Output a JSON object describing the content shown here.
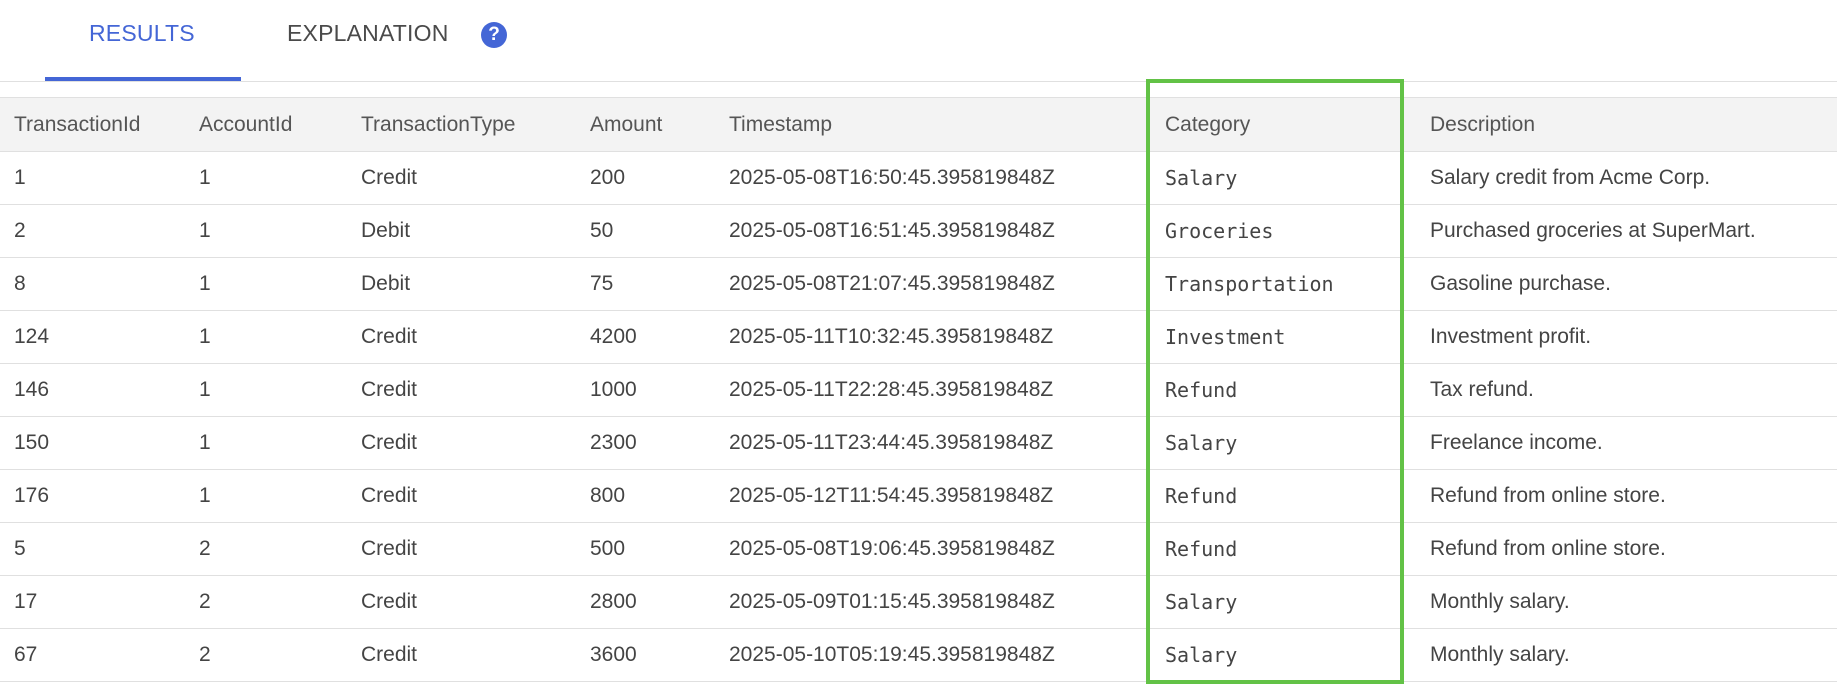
{
  "tabs": [
    {
      "label": "RESULTS",
      "active": true
    },
    {
      "label": "EXPLANATION",
      "active": false
    }
  ],
  "help_icon": "question-circle-icon",
  "accent_color": "#4466d6",
  "highlight_color": "#62c246",
  "table": {
    "columns": [
      "TransactionId",
      "AccountId",
      "TransactionType",
      "Amount",
      "Timestamp",
      "Category",
      "Description"
    ],
    "rows": [
      [
        "1",
        "1",
        "Credit",
        "200",
        "2025-05-08T16:50:45.395819848Z",
        "Salary",
        "Salary credit from Acme Corp."
      ],
      [
        "2",
        "1",
        "Debit",
        "50",
        "2025-05-08T16:51:45.395819848Z",
        "Groceries",
        "Purchased groceries at SuperMart."
      ],
      [
        "8",
        "1",
        "Debit",
        "75",
        "2025-05-08T21:07:45.395819848Z",
        "Transportation",
        "Gasoline purchase."
      ],
      [
        "124",
        "1",
        "Credit",
        "4200",
        "2025-05-11T10:32:45.395819848Z",
        "Investment",
        "Investment profit."
      ],
      [
        "146",
        "1",
        "Credit",
        "1000",
        "2025-05-11T22:28:45.395819848Z",
        "Refund",
        "Tax refund."
      ],
      [
        "150",
        "1",
        "Credit",
        "2300",
        "2025-05-11T23:44:45.395819848Z",
        "Salary",
        "Freelance income."
      ],
      [
        "176",
        "1",
        "Credit",
        "800",
        "2025-05-12T11:54:45.395819848Z",
        "Refund",
        "Refund from online store."
      ],
      [
        "5",
        "2",
        "Credit",
        "500",
        "2025-05-08T19:06:45.395819848Z",
        "Refund",
        "Refund from online store."
      ],
      [
        "17",
        "2",
        "Credit",
        "2800",
        "2025-05-09T01:15:45.395819848Z",
        "Salary",
        "Monthly salary."
      ],
      [
        "67",
        "2",
        "Credit",
        "3600",
        "2025-05-10T05:19:45.395819848Z",
        "Salary",
        "Monthly salary."
      ]
    ]
  }
}
